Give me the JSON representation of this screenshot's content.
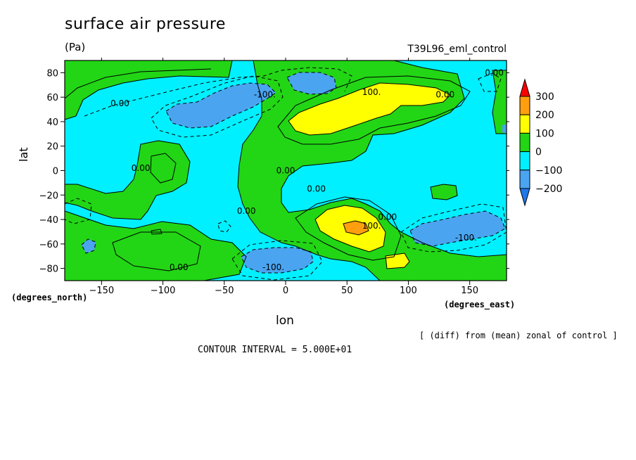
{
  "chart_data": {
    "type": "heatmap",
    "title": "surface air pressure",
    "units": "(Pa)",
    "run_name": "T39L96_eml_control",
    "xlabel": "lon",
    "ylabel": "lat",
    "x_unit_note": "(degrees_east)",
    "y_unit_note": "(degrees_north)",
    "xlim": [
      -180,
      180
    ],
    "ylim": [
      -90,
      90
    ],
    "x_ticks": [
      -150,
      -100,
      -50,
      0,
      50,
      100,
      150
    ],
    "y_ticks": [
      -80,
      -60,
      -40,
      -20,
      0,
      20,
      40,
      60,
      80
    ],
    "colorbar": {
      "levels": [
        -200,
        -100,
        0,
        100,
        200,
        300
      ],
      "level_labels": [
        "300",
        "200",
        "100",
        "0",
        "−100",
        "−200"
      ],
      "bins": [
        {
          "range": [
            -300,
            -200
          ],
          "color": "#1f78e8"
        },
        {
          "range": [
            -200,
            -100
          ],
          "color": "#4aa4f0"
        },
        {
          "range": [
            -100,
            0
          ],
          "color": "#00f0ff"
        },
        {
          "range": [
            0,
            100
          ],
          "color": "#22d615"
        },
        {
          "range": [
            100,
            200
          ],
          "color": "#ffff00"
        },
        {
          "range": [
            200,
            300
          ],
          "color": "#ff9f0f"
        },
        {
          "range": [
            300,
            400
          ],
          "color": "#ff0000"
        }
      ]
    },
    "contour_labels": [
      {
        "text": "0.00",
        "lon": 0,
        "lat": 0
      },
      {
        "text": "0.00",
        "lon": 170,
        "lat": 80
      },
      {
        "text": "0.00",
        "lon": -135,
        "lat": 55
      },
      {
        "text": "0.00",
        "lon": 130,
        "lat": 62
      },
      {
        "text": "0.00",
        "lon": -118,
        "lat": 2
      },
      {
        "text": "0.00",
        "lon": 25,
        "lat": -15
      },
      {
        "text": "0.00",
        "lon": -32,
        "lat": -33
      },
      {
        "text": "0.00",
        "lon": 83,
        "lat": -38
      },
      {
        "text": "0.00",
        "lon": -87,
        "lat": -79
      },
      {
        "text": "-100.",
        "lon": -17,
        "lat": 62
      },
      {
        "text": "100.",
        "lon": 70,
        "lat": 64
      },
      {
        "text": "100.",
        "lon": 70,
        "lat": -45
      },
      {
        "text": "-100.",
        "lon": 147,
        "lat": -55
      },
      {
        "text": "-100.",
        "lon": -10,
        "lat": -79
      }
    ],
    "contour_interval_text": "CONTOUR INTERVAL = 5.000E+01",
    "diff_note": "[ (diff) from (mean) zonal of control ]"
  }
}
